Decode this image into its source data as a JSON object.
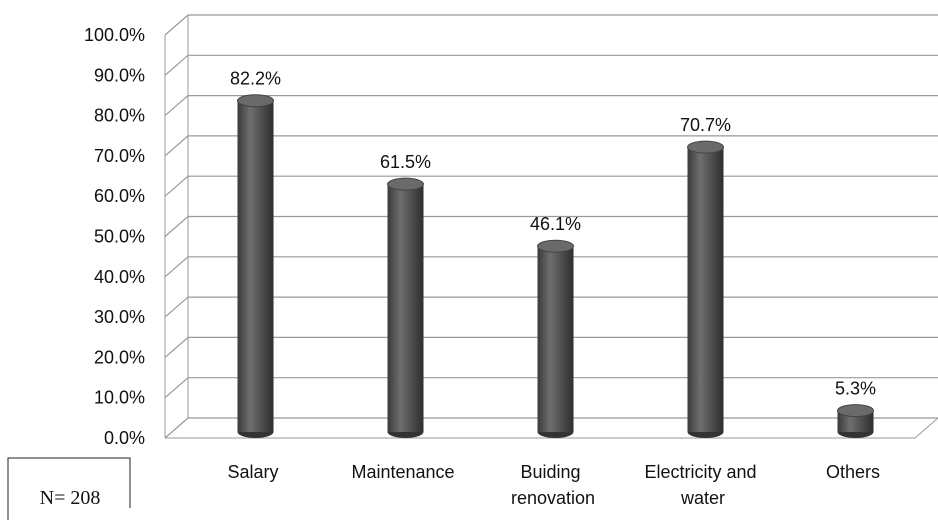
{
  "chart_data": {
    "type": "bar3d",
    "categories": [
      "Salary",
      "Maintenance",
      "Buiding renovation",
      "Electricity and water",
      "Others"
    ],
    "values": [
      82.2,
      61.5,
      46.1,
      70.7,
      5.3
    ],
    "value_labels": [
      "82.2%",
      "61.5%",
      "46.1%",
      "70.7%",
      "5.3%"
    ],
    "color": "#5a5a5a",
    "ylim": [
      0,
      100
    ],
    "yticks": [
      {
        "value": 0,
        "label": "0.0%"
      },
      {
        "value": 10,
        "label": "10.0%"
      },
      {
        "value": 20,
        "label": "20.0%"
      },
      {
        "value": 30,
        "label": "30.0%"
      },
      {
        "value": 40,
        "label": "40.0%"
      },
      {
        "value": 50,
        "label": "50.0%"
      },
      {
        "value": 60,
        "label": "60.0%"
      },
      {
        "value": 70,
        "label": "70.0%"
      },
      {
        "value": 80,
        "label": "80.0%"
      },
      {
        "value": 90,
        "label": "90.0%"
      },
      {
        "value": 100,
        "label": "100.0%"
      }
    ],
    "grid": true,
    "annotation": "N= 208"
  }
}
